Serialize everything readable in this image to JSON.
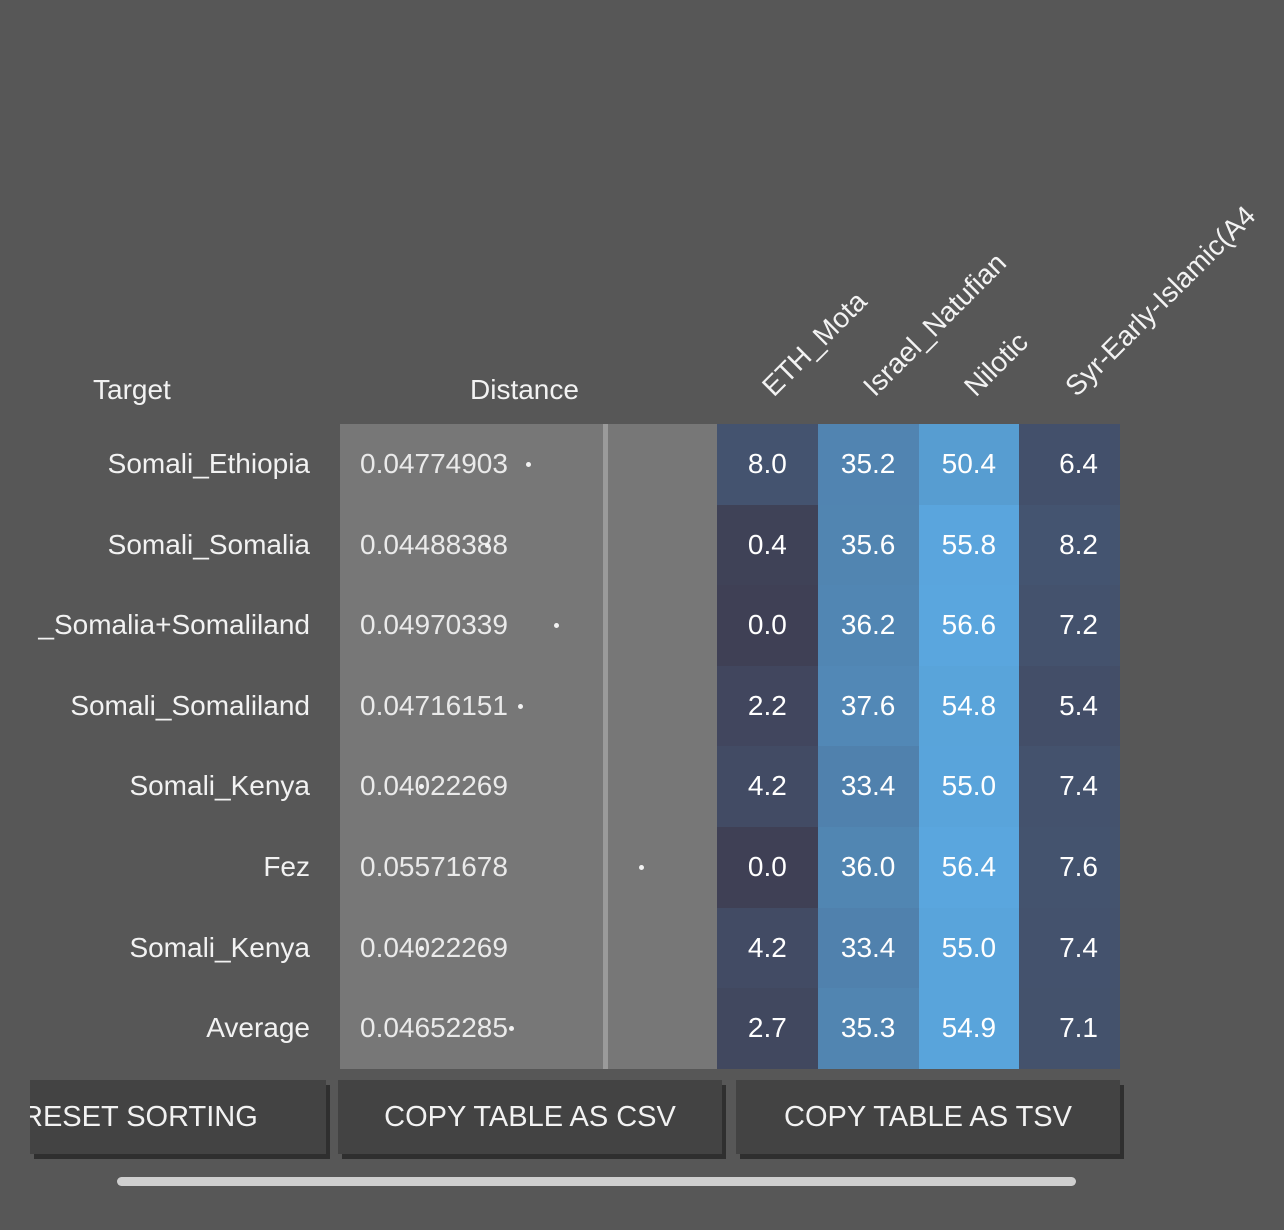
{
  "headers": {
    "target": "Target",
    "distance": "Distance",
    "columns": [
      "ETH_Mota",
      "Israel_Natufian",
      "Nilotic",
      "Syr-Early-Islamic(A4"
    ]
  },
  "rows": [
    {
      "target": "Somali_Ethiopia",
      "distance": "0.04774903",
      "values": [
        "8.0",
        "35.2",
        "50.4",
        "6.4"
      ]
    },
    {
      "target": "Somali_Somalia",
      "distance": "0.04488388",
      "values": [
        "0.4",
        "35.6",
        "55.8",
        "8.2"
      ]
    },
    {
      "target": "_Somalia+Somaliland",
      "distance": "0.04970339",
      "values": [
        "0.0",
        "36.2",
        "56.6",
        "7.2"
      ]
    },
    {
      "target": "Somali_Somaliland",
      "distance": "0.04716151",
      "values": [
        "2.2",
        "37.6",
        "54.8",
        "5.4"
      ]
    },
    {
      "target": "Somali_Kenya",
      "distance": "0.04022269",
      "values": [
        "4.2",
        "33.4",
        "55.0",
        "7.4"
      ]
    },
    {
      "target": "Fez",
      "distance": "0.05571678",
      "values": [
        "0.0",
        "36.0",
        "56.4",
        "7.6"
      ]
    },
    {
      "target": "Somali_Kenya",
      "distance": "0.04022269",
      "values": [
        "4.2",
        "33.4",
        "55.0",
        "7.4"
      ]
    },
    {
      "target": "Average",
      "distance": "0.04652285",
      "values": [
        "2.7",
        "35.3",
        "54.9",
        "7.1"
      ]
    }
  ],
  "buttons": {
    "reset": "RESET SORTING",
    "csv": "COPY TABLE AS CSV",
    "tsv": "COPY TABLE AS TSV"
  },
  "colors": {
    "background": "#575757",
    "distance_panel": "#777777",
    "heat_low": "#3f4055",
    "heat_high": "#5aa7df",
    "button": "#434343"
  }
}
